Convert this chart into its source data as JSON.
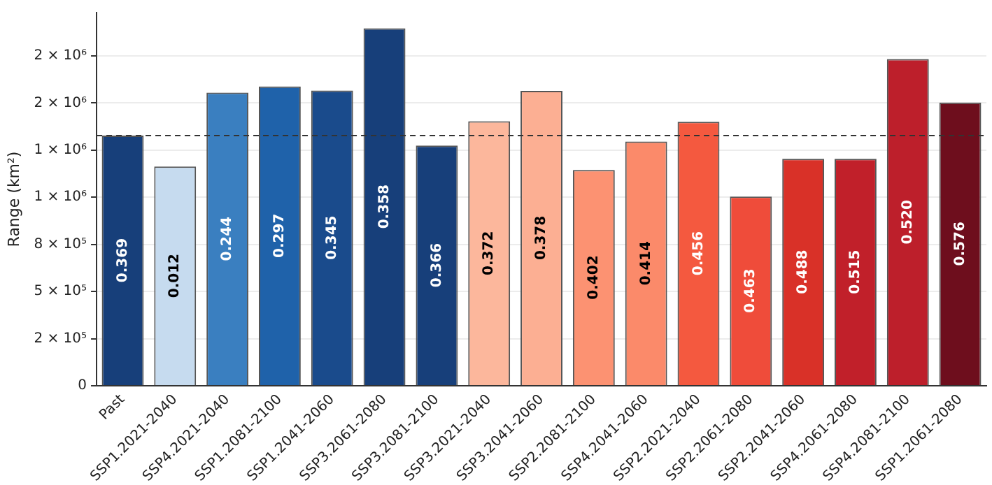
{
  "chart_data": {
    "type": "bar",
    "ylabel": "Range (km²)",
    "categories": [
      "Past",
      "SSP1.2021-2040",
      "SSP4.2021-2040",
      "SSP1.2081-2100",
      "SSP1.2041-2060",
      "SSP3.2061-2080",
      "SSP3.2081-2100",
      "SSP3.2021-2040",
      "SSP3.2041-2060",
      "SSP2.2081-2100",
      "SSP4.2041-2060",
      "SSP2.2021-2040",
      "SSP2.2061-2080",
      "SSP2.2041-2060",
      "SSP4.2061-2080",
      "SSP4.2081-2100",
      "SSP1.2061-2080"
    ],
    "values": [
      1327000,
      1163000,
      1555000,
      1588000,
      1567000,
      1897000,
      1275000,
      1403000,
      1565000,
      1145000,
      1296000,
      1401000,
      1004000,
      1204000,
      1204000,
      1733000,
      1503000
    ],
    "colors": [
      "#173f7a",
      "#c6dbef",
      "#3a7fc0",
      "#1f62aa",
      "#1a4b8c",
      "#173f7a",
      "#173f7a",
      "#fcb79c",
      "#fcaf93",
      "#fc9272",
      "#fb8a6a",
      "#f4593f",
      "#ef4c3a",
      "#d93128",
      "#c1202a",
      "#bd1f2b",
      "#6e0e1d"
    ],
    "annotations": [
      "0.369",
      "0.012",
      "0.244",
      "0.297",
      "0.345",
      "0.358",
      "0.366",
      "0.372",
      "0.378",
      "0.402",
      "0.414",
      "0.456",
      "0.463",
      "0.488",
      "0.515",
      "0.520",
      "0.576"
    ],
    "ylim": [
      0,
      1980000
    ],
    "yticks": [
      0,
      {
        "value": 250000,
        "label": "2 × 10⁵"
      },
      {
        "value": 500000,
        "label": "5 × 10⁵"
      },
      {
        "value": 750000,
        "label": "8 × 10⁵"
      },
      {
        "value": 1000000,
        "label": "1 × 10⁶"
      },
      {
        "value": 1250000,
        "label": "1 × 10⁶"
      },
      {
        "value": 1500000,
        "label": "2 × 10⁶"
      },
      {
        "value": 1750000,
        "label": "2 × 10⁶"
      }
    ],
    "ref_lines": [
      {
        "axis": "y",
        "value": 1327000,
        "color": "#333333",
        "line_style": "dashed"
      }
    ],
    "grid": "y",
    "legend": false
  }
}
